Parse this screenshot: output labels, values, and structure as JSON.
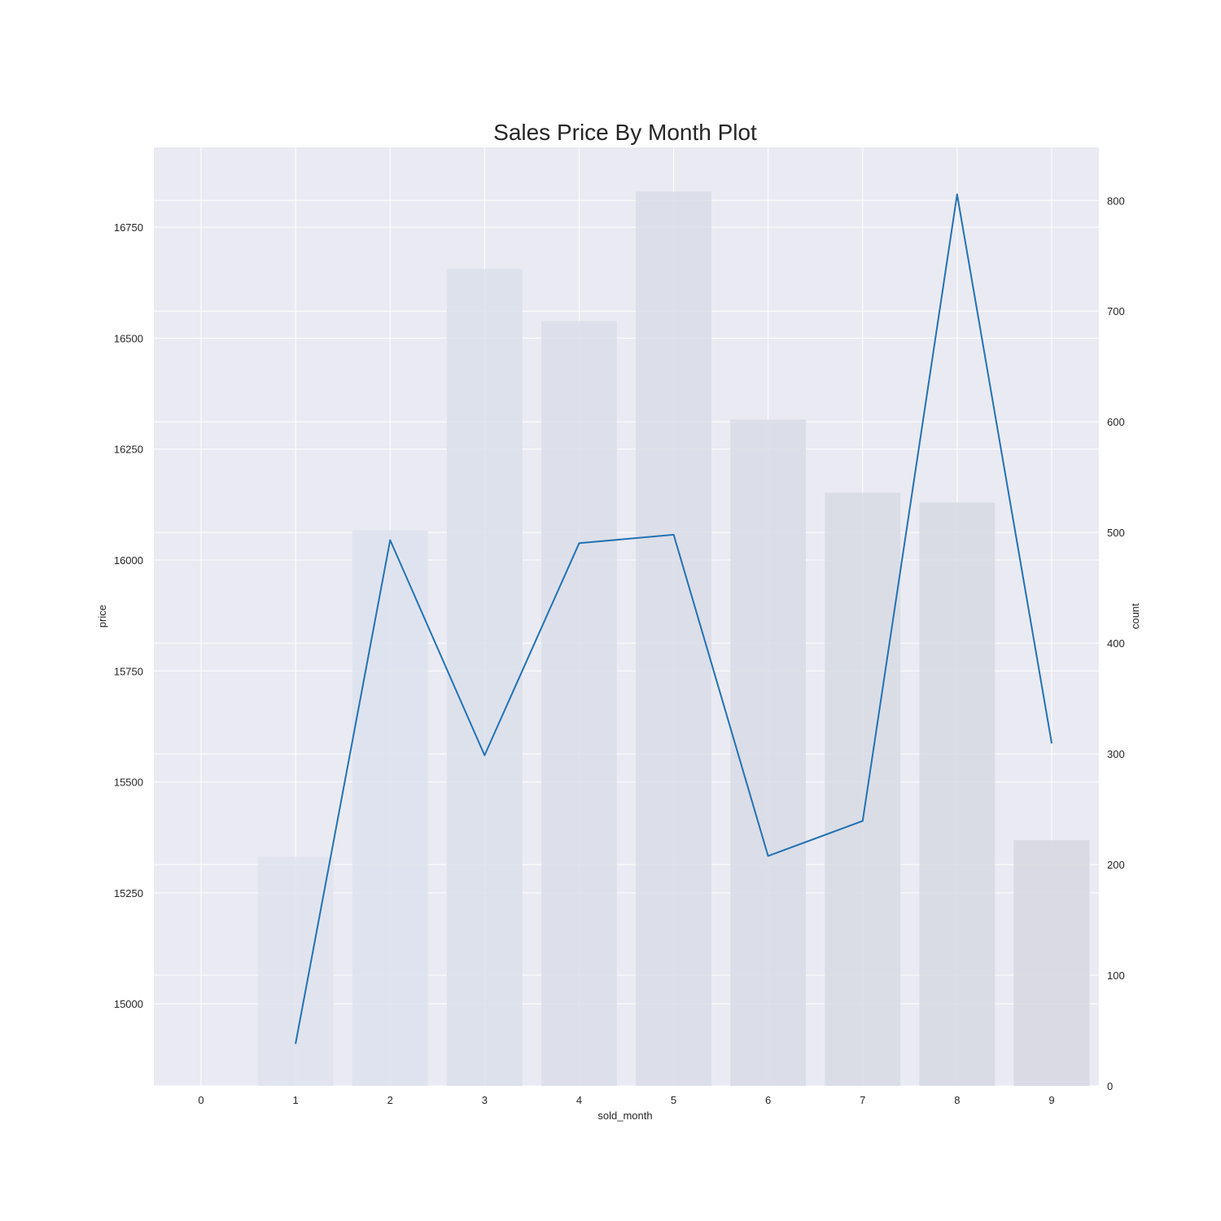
{
  "chart_data": {
    "type": "bar",
    "title": "Sales Price By Month Plot",
    "xlabel": "sold_month",
    "ylabel_left": "price",
    "ylabel_right": "count",
    "categories": [
      "0",
      "1",
      "2",
      "3",
      "4",
      "5",
      "6",
      "7",
      "8",
      "9"
    ],
    "x_range": [
      -0.5,
      9.5
    ],
    "left_axis": {
      "ylim": [
        14815,
        16930
      ],
      "ticks": [
        15000,
        15250,
        15500,
        15750,
        16000,
        16250,
        16500,
        16750
      ],
      "tick_labels": [
        "15000",
        "15250",
        "15500",
        "15750",
        "16000",
        "16250",
        "16500",
        "16750"
      ]
    },
    "right_axis": {
      "ylim": [
        0,
        848
      ],
      "ticks": [
        0,
        100,
        200,
        300,
        400,
        500,
        600,
        700,
        800
      ],
      "tick_labels": [
        "0",
        "100",
        "200",
        "300",
        "400",
        "500",
        "600",
        "700",
        "800"
      ]
    },
    "grid": true,
    "series": [
      {
        "type": "bar",
        "axis": "right",
        "x": [
          1,
          2,
          3,
          4,
          5,
          6,
          7,
          8,
          9
        ],
        "values": [
          207,
          502,
          738,
          691,
          808,
          602,
          536,
          527,
          222
        ],
        "colors": [
          "#dfe3ee",
          "#dde2ee",
          "#dbdfeb",
          "#dadeea",
          "#d9dce8",
          "#d8dbe6",
          "#d7dae4",
          "#d7d9e3",
          "#d6d7e0"
        ]
      },
      {
        "type": "line",
        "axis": "left",
        "x": [
          1,
          2,
          3,
          4,
          5,
          6,
          7,
          8,
          9
        ],
        "values": [
          14910,
          16045,
          15560,
          16038,
          16057,
          15333,
          15412,
          16824,
          15587
        ],
        "color": "#2272b4"
      }
    ]
  }
}
